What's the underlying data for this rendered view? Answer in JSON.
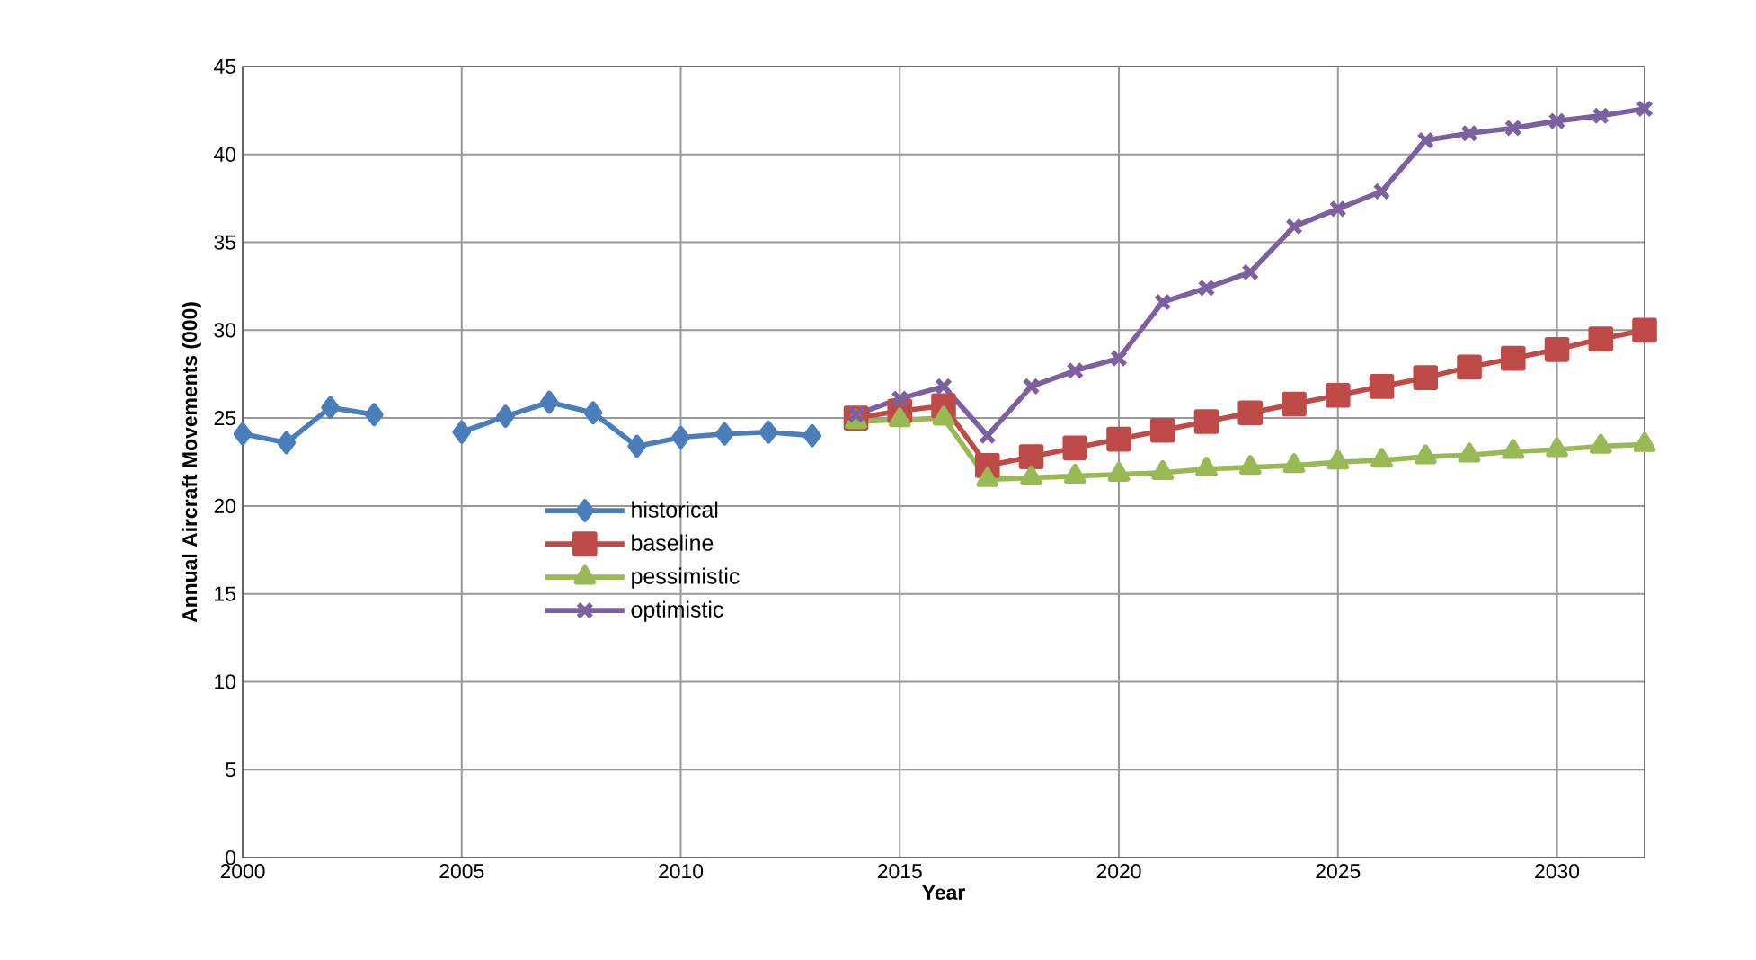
{
  "chart_data": {
    "type": "line",
    "xlabel": "Year",
    "ylabel": "Annual Aircraft Movements (000)",
    "xlim": [
      2000,
      2032
    ],
    "xticks": [
      2000,
      2005,
      2010,
      2015,
      2020,
      2025,
      2030
    ],
    "ylim": [
      0,
      45
    ],
    "yticks": [
      0,
      5,
      10,
      15,
      20,
      25,
      30,
      35,
      40,
      45
    ],
    "grid": true,
    "legend": "left",
    "line_style": "solid",
    "series": [
      {
        "name": "historical",
        "color": "#4a7ebb",
        "marker": "diamond",
        "x": [
          2000,
          2001,
          2002,
          2003,
          2004,
          2005,
          2006,
          2007,
          2008,
          2009,
          2010,
          2011,
          2012,
          2013
        ],
        "values": [
          24.1,
          23.6,
          25.6,
          25.2,
          null,
          24.2,
          25.1,
          25.9,
          25.3,
          23.4,
          23.9,
          24.1,
          24.2,
          24.0
        ]
      },
      {
        "name": "baseline",
        "color": "#be4b48",
        "marker": "square",
        "x": [
          2014,
          2015,
          2016,
          2017,
          2018,
          2019,
          2020,
          2021,
          2022,
          2023,
          2024,
          2025,
          2026,
          2027,
          2028,
          2029,
          2030,
          2031,
          2032
        ],
        "values": [
          25.0,
          25.4,
          25.7,
          22.3,
          22.8,
          23.3,
          23.8,
          24.3,
          24.8,
          25.3,
          25.8,
          26.3,
          26.8,
          27.3,
          27.9,
          28.4,
          28.9,
          29.5,
          30.0
        ]
      },
      {
        "name": "pessimistic",
        "color": "#98b954",
        "marker": "triangle",
        "x": [
          2014,
          2015,
          2016,
          2017,
          2018,
          2019,
          2020,
          2021,
          2022,
          2023,
          2024,
          2025,
          2026,
          2027,
          2028,
          2029,
          2030,
          2031,
          2032
        ],
        "values": [
          24.8,
          24.9,
          25.0,
          21.5,
          21.6,
          21.7,
          21.8,
          21.9,
          22.1,
          22.2,
          22.3,
          22.5,
          22.6,
          22.8,
          22.9,
          23.1,
          23.2,
          23.4,
          23.5
        ]
      },
      {
        "name": "optimistic",
        "color": "#7d60a0",
        "marker": "cross",
        "x": [
          2014,
          2015,
          2016,
          2017,
          2018,
          2019,
          2020,
          2021,
          2022,
          2023,
          2024,
          2025,
          2026,
          2027,
          2028,
          2029,
          2030,
          2031,
          2032
        ],
        "values": [
          25.2,
          26.1,
          26.8,
          24.0,
          26.8,
          27.7,
          28.4,
          31.6,
          32.4,
          33.3,
          35.9,
          36.9,
          37.9,
          40.8,
          41.2,
          41.5,
          41.9,
          42.2,
          42.6
        ]
      }
    ]
  }
}
